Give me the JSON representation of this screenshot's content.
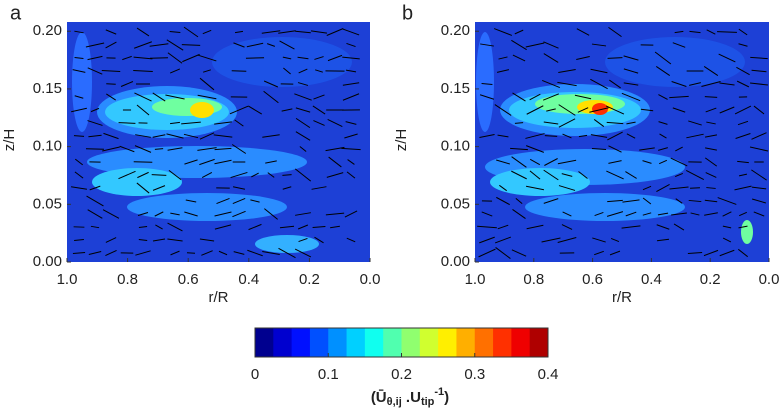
{
  "chart_data": [
    {
      "type": "contour",
      "panel_label": "a",
      "x_label": "r/R",
      "y_label": "z/H",
      "xlim": [
        1,
        0
      ],
      "ylim": [
        0,
        0.208
      ],
      "xticks": [
        {
          "value": 1,
          "label": "1.0"
        },
        {
          "value": 0.8,
          "label": "0.8"
        },
        {
          "value": 0.6,
          "label": "0.6"
        },
        {
          "value": 0.4,
          "label": "0.4"
        },
        {
          "value": 0.2,
          "label": "0.2"
        },
        {
          "value": 0,
          "label": "0.0"
        }
      ],
      "yticks": [
        {
          "value": 0,
          "label": "0.00"
        },
        {
          "value": 0.05,
          "label": "0.05"
        },
        {
          "value": 0.1,
          "label": "0.10"
        },
        {
          "value": 0.15,
          "label": "0.15"
        },
        {
          "value": 0.2,
          "label": "0.20"
        }
      ]
    },
    {
      "type": "contour",
      "panel_label": "b",
      "x_label": "r/R",
      "y_label": "z/H",
      "xlim": [
        1,
        0
      ],
      "ylim": [
        0,
        0.208
      ],
      "xticks": [
        {
          "value": 1,
          "label": "1.0"
        },
        {
          "value": 0.8,
          "label": "0.8"
        },
        {
          "value": 0.6,
          "label": "0.6"
        },
        {
          "value": 0.4,
          "label": "0.4"
        },
        {
          "value": 0.2,
          "label": "0.2"
        },
        {
          "value": 0,
          "label": "0.0"
        }
      ],
      "yticks": [
        {
          "value": 0,
          "label": "0.00"
        },
        {
          "value": 0.05,
          "label": "0.05"
        },
        {
          "value": 0.1,
          "label": "0.10"
        },
        {
          "value": 0.15,
          "label": "0.15"
        },
        {
          "value": 0.2,
          "label": "0.20"
        }
      ]
    }
  ],
  "colorbar": {
    "lim": [
      0,
      0.4
    ],
    "ticks": [
      0,
      0.1,
      0.2,
      0.3,
      0.4
    ],
    "colors": [
      "#00008f",
      "#0000cf",
      "#0010ff",
      "#0050ff",
      "#0090ff",
      "#00d0ff",
      "#10ffef",
      "#50ffaf",
      "#90ff6f",
      "#d0ff2f",
      "#ffef00",
      "#ffaf00",
      "#ff7000",
      "#ff3000",
      "#ef0000",
      "#af0000"
    ],
    "label": {
      "open": "(Ū",
      "sub1": "θ,ij",
      "mid": " .U",
      "sub2": "tip",
      "sup": "-1",
      "close": ")"
    }
  }
}
